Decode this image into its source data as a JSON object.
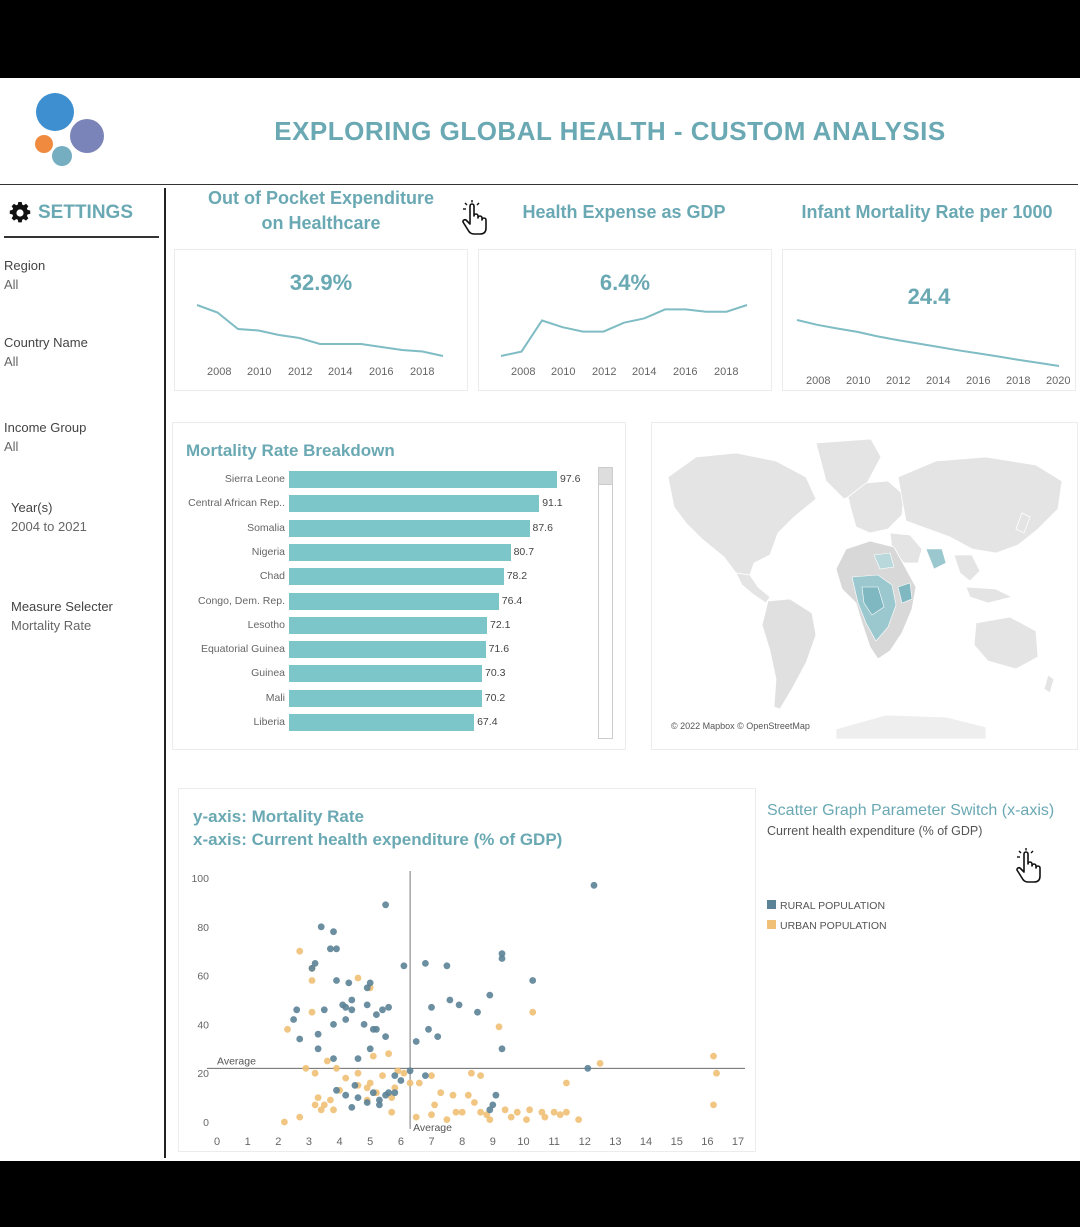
{
  "header": {
    "title": "EXPLORING GLOBAL HEALTH - CUSTOM ANALYSIS"
  },
  "settings": {
    "label": "SETTINGS",
    "filters": [
      {
        "label": "Region",
        "value": "All"
      },
      {
        "label": "Country Name",
        "value": "All"
      },
      {
        "label": "Income Group",
        "value": "All"
      },
      {
        "label": "Year(s)",
        "value": "2004 to 2021"
      },
      {
        "label": "Measure Selecter",
        "value": "Mortality Rate"
      }
    ]
  },
  "kpis": [
    {
      "title_line1": "Out of Pocket Expenditure",
      "title_line2": "on Healthcare",
      "value": "32.9%",
      "ticks": [
        "2008",
        "2010",
        "2012",
        "2014",
        "2016",
        "2018"
      ]
    },
    {
      "title_line1": "Health Expense as GDP",
      "title_line2": "",
      "value": "6.4%",
      "ticks": [
        "2008",
        "2010",
        "2012",
        "2014",
        "2016",
        "2018"
      ]
    },
    {
      "title_line1": "Infant Mortality Rate per 1000",
      "title_line2": "",
      "value": "24.4",
      "ticks": [
        "2008",
        "2010",
        "2012",
        "2014",
        "2016",
        "2018",
        "2020"
      ]
    }
  ],
  "sparklines": [
    {
      "x": [
        2007,
        2008,
        2009,
        2010,
        2011,
        2012,
        2013,
        2014,
        2015,
        2016,
        2017,
        2018,
        2019
      ],
      "y": [
        36.0,
        35.5,
        34.4,
        34.3,
        34.0,
        33.8,
        33.4,
        33.4,
        33.4,
        33.2,
        33.0,
        32.9,
        32.6
      ]
    },
    {
      "x": [
        2007,
        2008,
        2009,
        2010,
        2011,
        2012,
        2013,
        2014,
        2015,
        2016,
        2017,
        2018,
        2019
      ],
      "y": [
        5.8,
        5.9,
        6.6,
        6.45,
        6.35,
        6.35,
        6.55,
        6.65,
        6.85,
        6.85,
        6.8,
        6.8,
        6.95
      ]
    },
    {
      "x": [
        2007,
        2008,
        2009,
        2010,
        2011,
        2012,
        2013,
        2014,
        2015,
        2016,
        2017,
        2018,
        2019,
        2020
      ],
      "y": [
        40,
        38.6,
        37.5,
        36.5,
        35.2,
        34.1,
        33.1,
        32.1,
        31.1,
        30.2,
        29.3,
        28.3,
        27.4,
        26.5
      ]
    }
  ],
  "mortality_breakdown": {
    "title": "Mortality Rate Breakdown",
    "rows": [
      {
        "country": "Sierra Leone",
        "value": 97.6
      },
      {
        "country": "Central African Rep..",
        "value": 91.1
      },
      {
        "country": "Somalia",
        "value": 87.6
      },
      {
        "country": "Nigeria",
        "value": 80.7
      },
      {
        "country": "Chad",
        "value": 78.2
      },
      {
        "country": "Congo, Dem. Rep.",
        "value": 76.4
      },
      {
        "country": "Lesotho",
        "value": 72.1
      },
      {
        "country": "Equatorial Guinea",
        "value": 71.6
      },
      {
        "country": "Guinea",
        "value": 70.3
      },
      {
        "country": "Mali",
        "value": 70.2
      },
      {
        "country": "Liberia",
        "value": 67.4
      }
    ]
  },
  "map": {
    "attribution": "© 2022 Mapbox © OpenStreetMap"
  },
  "scatter": {
    "title_line1": "y-axis: Mortality Rate",
    "title_line2": "x-axis: Current health expenditure (% of GDP)",
    "avg_label": "Average",
    "x_ticks": [
      "0",
      "1",
      "2",
      "3",
      "4",
      "5",
      "6",
      "7",
      "8",
      "9",
      "10",
      "11",
      "12",
      "13",
      "14",
      "15",
      "16",
      "17"
    ],
    "y_ticks": [
      "0",
      "20",
      "40",
      "60",
      "80",
      "100"
    ],
    "colors": {
      "rural": "#5b8296",
      "urban": "#efc075"
    }
  },
  "switch": {
    "title": "Scatter Graph Parameter Switch (x-axis)",
    "value": "Current health expenditure (% of GDP)",
    "legend": [
      {
        "label": "RURAL POPULATION",
        "color": "#5b8296"
      },
      {
        "label": "URBAN POPULATION",
        "color": "#efc075"
      }
    ]
  },
  "chart_data": {
    "type": "scatter",
    "title": "y-axis: Mortality Rate",
    "xlabel": "x-axis: Current health expenditure (% of GDP)",
    "ylabel": "",
    "xlim": [
      0,
      17
    ],
    "ylim": [
      0,
      100
    ],
    "reference_lines": {
      "x_average": 6.3,
      "y_average": 22
    },
    "series": [
      {
        "name": "RURAL POPULATION",
        "points": [
          [
            5.5,
            89
          ],
          [
            12.3,
            97
          ],
          [
            3.4,
            80
          ],
          [
            3.8,
            78
          ],
          [
            3.9,
            71
          ],
          [
            3.7,
            71
          ],
          [
            3.2,
            65
          ],
          [
            6.8,
            65
          ],
          [
            7.5,
            64
          ],
          [
            9.3,
            69
          ],
          [
            9.3,
            67
          ],
          [
            6.1,
            64
          ],
          [
            10.3,
            58
          ],
          [
            3.1,
            63
          ],
          [
            3.9,
            58
          ],
          [
            5.0,
            57
          ],
          [
            4.9,
            55
          ],
          [
            4.3,
            57
          ],
          [
            4.4,
            46
          ],
          [
            2.5,
            42
          ],
          [
            2.6,
            46
          ],
          [
            3.5,
            46
          ],
          [
            4.1,
            48
          ],
          [
            4.4,
            50
          ],
          [
            4.2,
            47
          ],
          [
            4.9,
            48
          ],
          [
            5.2,
            44
          ],
          [
            5.4,
            46
          ],
          [
            5.6,
            47
          ],
          [
            5.2,
            38
          ],
          [
            5.5,
            35
          ],
          [
            5.1,
            38
          ],
          [
            4.8,
            40
          ],
          [
            4.2,
            42
          ],
          [
            3.8,
            40
          ],
          [
            3.3,
            36
          ],
          [
            2.7,
            34
          ],
          [
            3.3,
            30
          ],
          [
            3.8,
            26
          ],
          [
            4.6,
            26
          ],
          [
            5.0,
            30
          ],
          [
            7.0,
            47
          ],
          [
            7.6,
            50
          ],
          [
            7.9,
            48
          ],
          [
            8.5,
            45
          ],
          [
            8.9,
            52
          ],
          [
            6.5,
            33
          ],
          [
            6.9,
            38
          ],
          [
            7.2,
            35
          ],
          [
            9.3,
            30
          ],
          [
            6.3,
            21
          ],
          [
            6.8,
            19
          ],
          [
            6.0,
            17
          ],
          [
            5.5,
            11
          ],
          [
            5.3,
            9
          ],
          [
            5.8,
            12
          ],
          [
            5.1,
            12
          ],
          [
            4.9,
            8
          ],
          [
            5.3,
            7
          ],
          [
            4.5,
            15
          ],
          [
            4.2,
            11
          ],
          [
            4.6,
            10
          ],
          [
            4.4,
            6
          ],
          [
            3.9,
            13
          ],
          [
            9.1,
            11
          ],
          [
            9.0,
            7
          ],
          [
            8.9,
            5
          ],
          [
            5.8,
            19
          ],
          [
            5.6,
            12
          ],
          [
            12.1,
            22
          ]
        ]
      },
      {
        "name": "URBAN POPULATION",
        "points": [
          [
            2.7,
            70
          ],
          [
            3.1,
            63
          ],
          [
            3.1,
            58
          ],
          [
            4.6,
            59
          ],
          [
            5.0,
            55
          ],
          [
            2.3,
            38
          ],
          [
            3.1,
            45
          ],
          [
            10.3,
            45
          ],
          [
            9.2,
            39
          ],
          [
            3.6,
            25
          ],
          [
            5.1,
            27
          ],
          [
            5.6,
            28
          ],
          [
            3.9,
            22
          ],
          [
            2.9,
            22
          ],
          [
            3.2,
            20
          ],
          [
            4.6,
            20
          ],
          [
            4.2,
            18
          ],
          [
            4.6,
            15
          ],
          [
            4.9,
            14
          ],
          [
            5.2,
            12
          ],
          [
            5.7,
            10
          ],
          [
            5.8,
            14
          ],
          [
            6.1,
            20
          ],
          [
            6.3,
            16
          ],
          [
            5.4,
            19
          ],
          [
            5.9,
            21
          ],
          [
            5.0,
            16
          ],
          [
            4.0,
            13
          ],
          [
            4.9,
            9
          ],
          [
            3.7,
            9
          ],
          [
            3.5,
            7
          ],
          [
            3.2,
            7
          ],
          [
            3.3,
            10
          ],
          [
            3.4,
            5
          ],
          [
            3.8,
            5
          ],
          [
            5.7,
            4
          ],
          [
            6.6,
            16
          ],
          [
            7.0,
            19
          ],
          [
            7.3,
            12
          ],
          [
            7.7,
            11
          ],
          [
            7.1,
            7
          ],
          [
            7.8,
            4
          ],
          [
            8.3,
            20
          ],
          [
            8.6,
            19
          ],
          [
            8.2,
            11
          ],
          [
            8.4,
            8
          ],
          [
            8.0,
            4
          ],
          [
            8.6,
            4
          ],
          [
            9.4,
            5
          ],
          [
            9.8,
            4
          ],
          [
            10.2,
            5
          ],
          [
            10.6,
            4
          ],
          [
            11.0,
            4
          ],
          [
            11.4,
            4
          ],
          [
            8.8,
            3
          ],
          [
            9.6,
            2
          ],
          [
            10.1,
            1
          ],
          [
            10.7,
            2
          ],
          [
            11.2,
            3
          ],
          [
            11.8,
            1
          ],
          [
            12.5,
            24
          ],
          [
            11.4,
            16
          ],
          [
            16.2,
            27
          ],
          [
            16.3,
            20
          ],
          [
            16.2,
            7
          ],
          [
            2.2,
            0
          ],
          [
            2.7,
            2
          ],
          [
            6.5,
            2
          ],
          [
            7.0,
            3
          ],
          [
            7.5,
            1
          ],
          [
            8.9,
            1
          ]
        ]
      }
    ]
  }
}
